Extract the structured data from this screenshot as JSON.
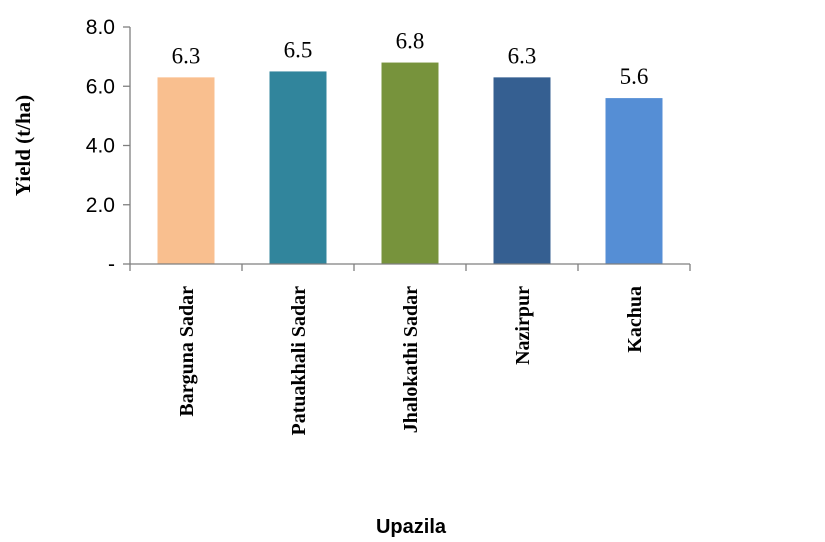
{
  "chart_data": {
    "type": "bar",
    "categories": [
      "Barguna Sadar",
      "Patuakhali Sadar",
      "Jhalokathi Sadar",
      "Nazirpur",
      "Kachua"
    ],
    "values": [
      6.3,
      6.5,
      6.8,
      6.3,
      5.6
    ],
    "data_labels": [
      "6.3",
      "6.5",
      "6.8",
      "6.3",
      "5.6"
    ],
    "colors": [
      "#F9BF8F",
      "#31859C",
      "#77933C",
      "#355F91",
      "#558ED5"
    ],
    "xlabel": "Upazila",
    "ylabel": "Yield (t/ha)",
    "ylim": [
      0,
      8
    ],
    "yticks": [
      0,
      2,
      4,
      6,
      8
    ],
    "ytick_labels": [
      "-",
      "2.0",
      "4.0",
      "6.0",
      "8.0"
    ],
    "grid": false,
    "legend": "none"
  }
}
